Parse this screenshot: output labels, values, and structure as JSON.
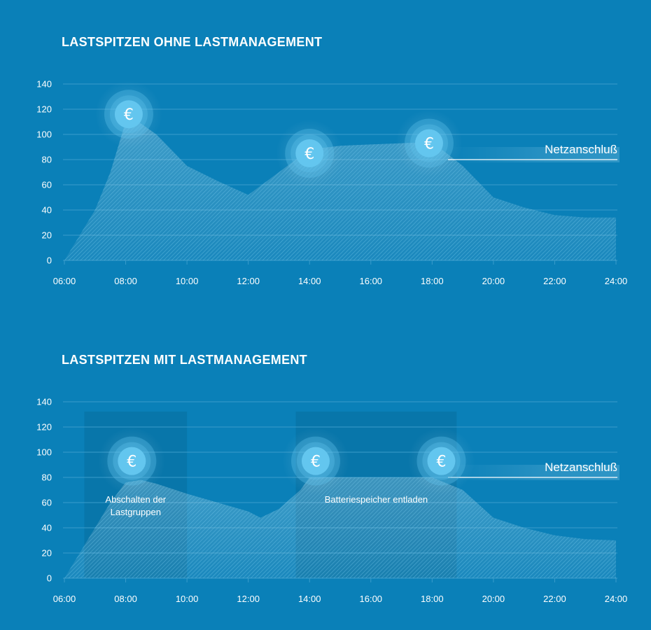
{
  "chart_data": [
    {
      "type": "area",
      "title": "LASTSPITZEN OHNE LASTMANAGEMENT",
      "x_ticks": [
        "06:00",
        "08:00",
        "10:00",
        "12:00",
        "14:00",
        "16:00",
        "18:00",
        "20:00",
        "22:00",
        "24:00"
      ],
      "y_ticks": [
        "0",
        "20",
        "40",
        "60",
        "80",
        "100",
        "120",
        "140"
      ],
      "ylim": [
        0,
        140
      ],
      "xlim_hours": [
        6,
        24
      ],
      "grid": true,
      "series": [
        {
          "x": [
            6,
            7,
            7.5,
            8,
            8.3,
            9,
            10,
            11,
            12,
            13,
            14,
            15,
            16,
            17,
            18,
            19,
            20,
            21,
            22,
            23,
            24
          ],
          "values": [
            0,
            40,
            70,
            110,
            112,
            100,
            75,
            63,
            52,
            70,
            88,
            91,
            92,
            93,
            94,
            75,
            50,
            42,
            36,
            34,
            34
          ]
        }
      ],
      "reference_line": {
        "label": "Netzanschluß",
        "value": 80
      },
      "peak_markers": [
        {
          "symbol": "€",
          "x": 8.1,
          "y": 116
        },
        {
          "symbol": "€",
          "x": 14.0,
          "y": 85
        },
        {
          "symbol": "€",
          "x": 17.9,
          "y": 93
        }
      ]
    },
    {
      "type": "area",
      "title": "LASTSPITZEN MIT LASTMANAGEMENT",
      "x_ticks": [
        "06:00",
        "08:00",
        "10:00",
        "12:00",
        "14:00",
        "16:00",
        "18:00",
        "20:00",
        "22:00",
        "24:00"
      ],
      "y_ticks": [
        "0",
        "20",
        "40",
        "60",
        "80",
        "100",
        "120",
        "140"
      ],
      "ylim": [
        0,
        140
      ],
      "xlim_hours": [
        6,
        24
      ],
      "grid": true,
      "series": [
        {
          "x": [
            6,
            7,
            7.5,
            8,
            8.5,
            9,
            10,
            11,
            12,
            12.4,
            13,
            13.7,
            14,
            15,
            16,
            17,
            18,
            19,
            20,
            21,
            22,
            23,
            24
          ],
          "values": [
            0,
            40,
            60,
            76,
            78,
            75,
            67,
            60,
            53,
            48,
            55,
            70,
            80,
            80,
            80,
            80,
            80,
            70,
            48,
            40,
            34,
            31,
            30
          ]
        }
      ],
      "reference_line": {
        "label": "Netzanschluß",
        "value": 80
      },
      "peak_markers": [
        {
          "symbol": "€",
          "x": 8.2,
          "y": 93
        },
        {
          "symbol": "€",
          "x": 14.2,
          "y": 93
        },
        {
          "symbol": "€",
          "x": 18.3,
          "y": 93
        }
      ],
      "annotations": [
        {
          "text_lines": [
            "Abschalten der",
            "Lastgruppen"
          ],
          "x_range": [
            6.65,
            10
          ]
        },
        {
          "text_lines": [
            "Batteriespeicher entladen"
          ],
          "x_range": [
            13.55,
            18.8
          ]
        }
      ]
    }
  ],
  "colors": {
    "background": "#0a80b8",
    "grid": "#3a9ccb",
    "text": "#ffffff",
    "marker_inner": "#63c6ef",
    "marker_halo": "#5cc0ea",
    "area_hatch": "#7fd0f2",
    "shade": "#086e9f"
  }
}
